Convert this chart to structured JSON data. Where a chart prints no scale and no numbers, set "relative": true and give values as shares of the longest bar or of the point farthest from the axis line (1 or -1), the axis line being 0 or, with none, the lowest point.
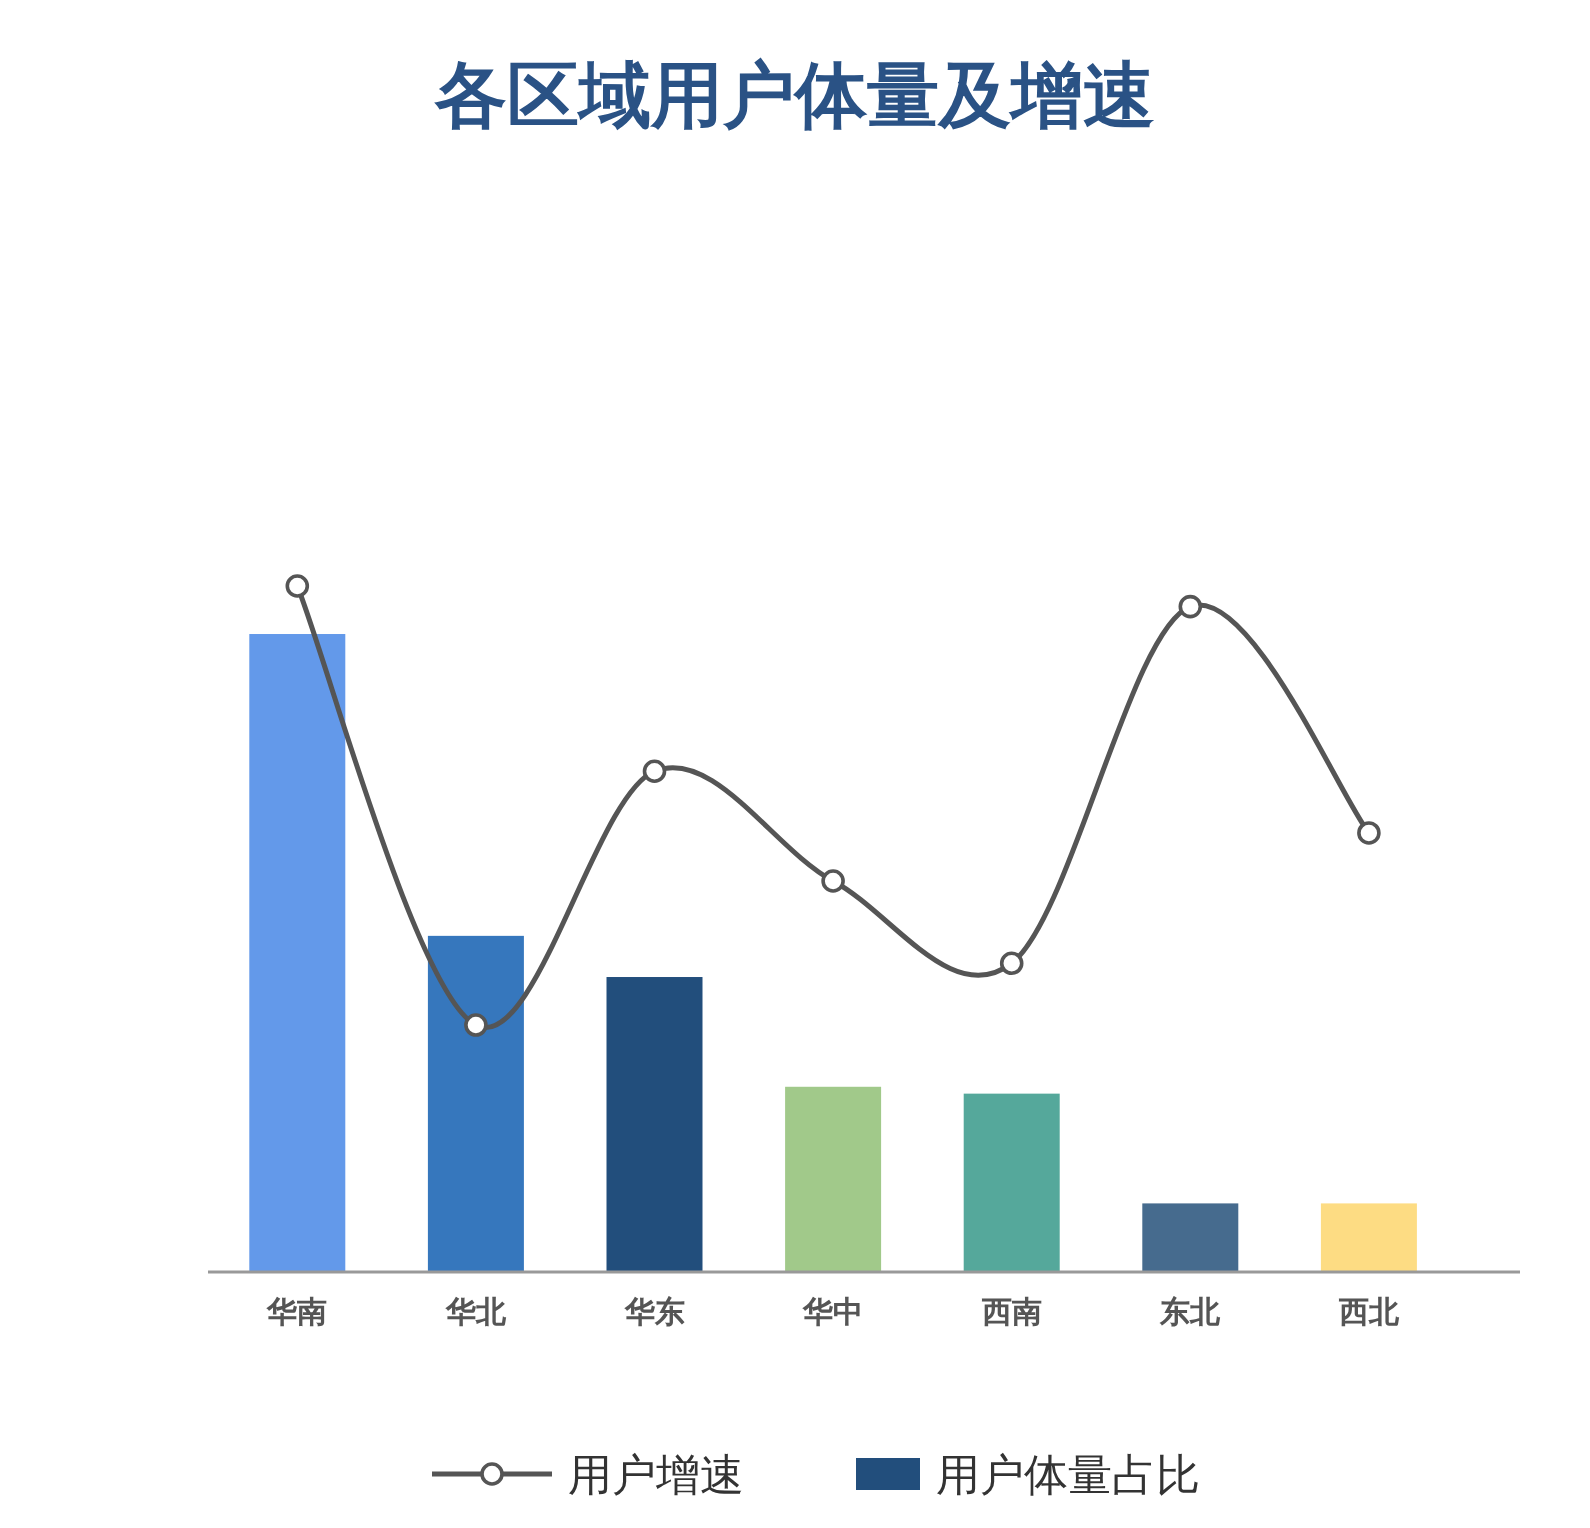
{
  "chart_data": {
    "type": "bar",
    "title": "各区域用户体量及增速",
    "relative": true,
    "legend": "bottom",
    "marker": "circle",
    "categories": [
      "华南",
      "华北",
      "华东",
      "华中",
      "西南",
      "东北",
      "西北"
    ],
    "series": [
      {
        "name": "用户增速",
        "type": "line",
        "color": "#555555",
        "values": [
          1,
          0.36,
          0.73,
          0.57,
          0.45,
          0.97,
          0.64
        ]
      },
      {
        "name": "用户体量占比",
        "color": "#224e7c",
        "colors": [
          "#6399ea",
          "#3677bd",
          "#224e7c",
          "#a1c98a",
          "#55a89b",
          "#466b8e",
          "#fddc83"
        ],
        "values": [
          0.93,
          0.49,
          0.43,
          0.27,
          0.26,
          0.1,
          0.1
        ]
      }
    ]
  }
}
